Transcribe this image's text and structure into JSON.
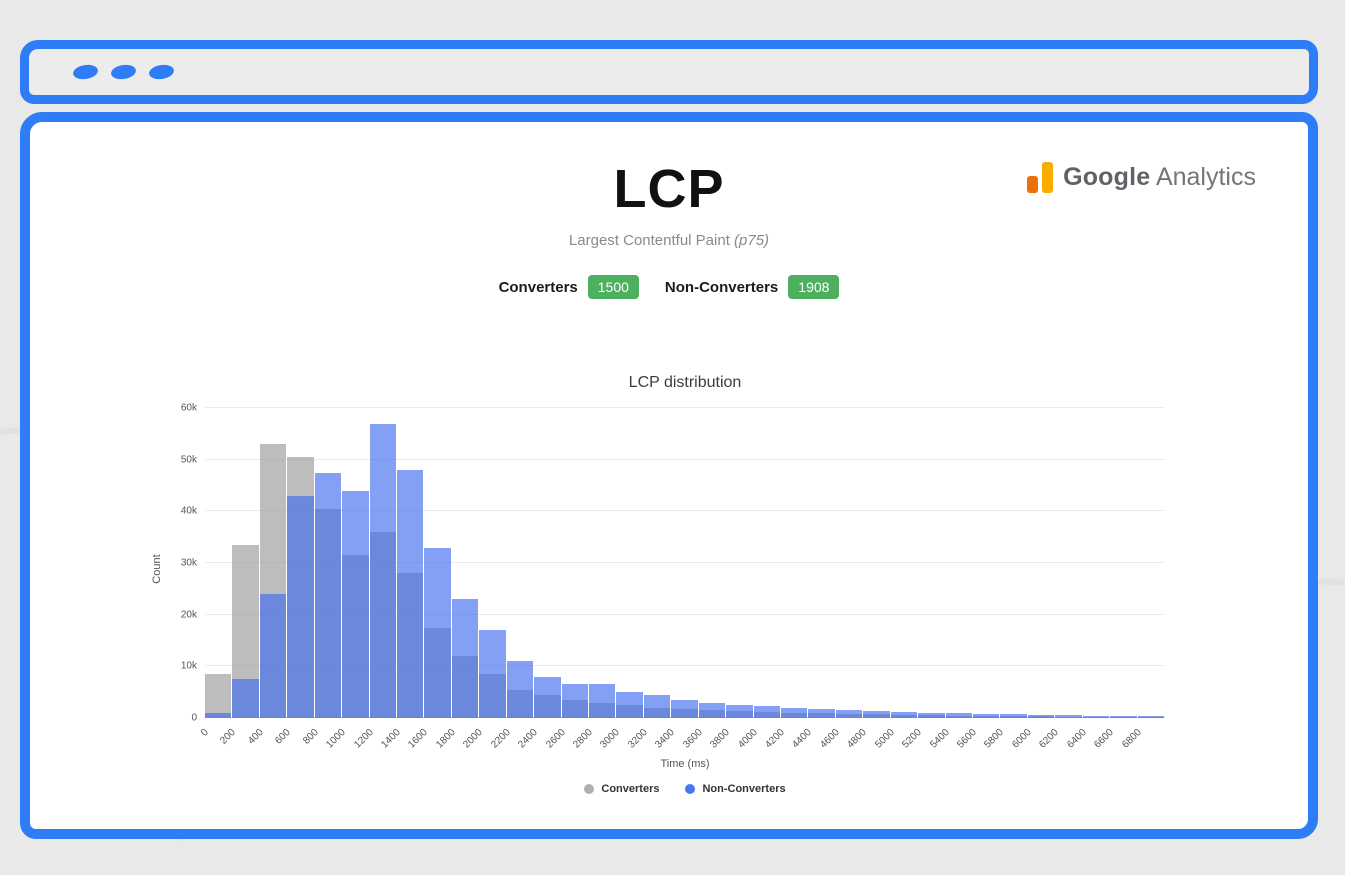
{
  "header": {
    "title": "LCP",
    "subtitle": "Largest Contentful Paint",
    "subtitle_em": "(p75)"
  },
  "logo": {
    "google": "Google",
    "analytics": "Analytics"
  },
  "stats": {
    "badge_color": "#4db05f",
    "converters_label": "Converters",
    "converters_value": "1500",
    "non_converters_label": "Non-Converters",
    "non_converters_value": "1908"
  },
  "chart_data": {
    "type": "bar",
    "subtype": "overlaid-histogram",
    "title": "LCP distribution",
    "xlabel": "Time (ms)",
    "ylabel": "Count",
    "ylim": [
      0,
      60000
    ],
    "ytick_labels": [
      "0",
      "10k",
      "20k",
      "30k",
      "40k",
      "50k",
      "60k"
    ],
    "bin_width_ms": 200,
    "grid": true,
    "legend_position": "bottom",
    "x_tick_labels": [
      "0",
      "200",
      "400",
      "600",
      "800",
      "1000",
      "1200",
      "1400",
      "1600",
      "1800",
      "2000",
      "2200",
      "2400",
      "2600",
      "2800",
      "3000",
      "3200",
      "3400",
      "3600",
      "3800",
      "4000",
      "4200",
      "4400",
      "4600",
      "4800",
      "5000",
      "5200",
      "5400",
      "5600",
      "5800",
      "6000",
      "6200",
      "6400",
      "6600",
      "6800"
    ],
    "series": [
      {
        "name": "Converters",
        "color": "#b0b0b0",
        "fill": "rgba(148,148,148,0.62)",
        "values": [
          8500,
          33500,
          53000,
          50500,
          40500,
          31500,
          36000,
          28000,
          17500,
          12000,
          8500,
          5500,
          4500,
          3500,
          3000,
          2500,
          2000,
          1800,
          1500,
          1300,
          1100,
          1000,
          900,
          800,
          700,
          600,
          500,
          450,
          400,
          350,
          300,
          250,
          200,
          150,
          100
        ]
      },
      {
        "name": "Non-Converters",
        "color": "#4578f0",
        "fill": "rgba(61,106,240,0.64)",
        "values": [
          1000,
          7500,
          24000,
          43000,
          47500,
          44000,
          57000,
          48000,
          33000,
          23000,
          17000,
          11000,
          8000,
          6500,
          6500,
          5000,
          4500,
          3500,
          3000,
          2600,
          2300,
          2000,
          1800,
          1600,
          1400,
          1200,
          1000,
          900,
          800,
          700,
          600,
          500,
          450,
          400,
          350
        ]
      }
    ]
  }
}
